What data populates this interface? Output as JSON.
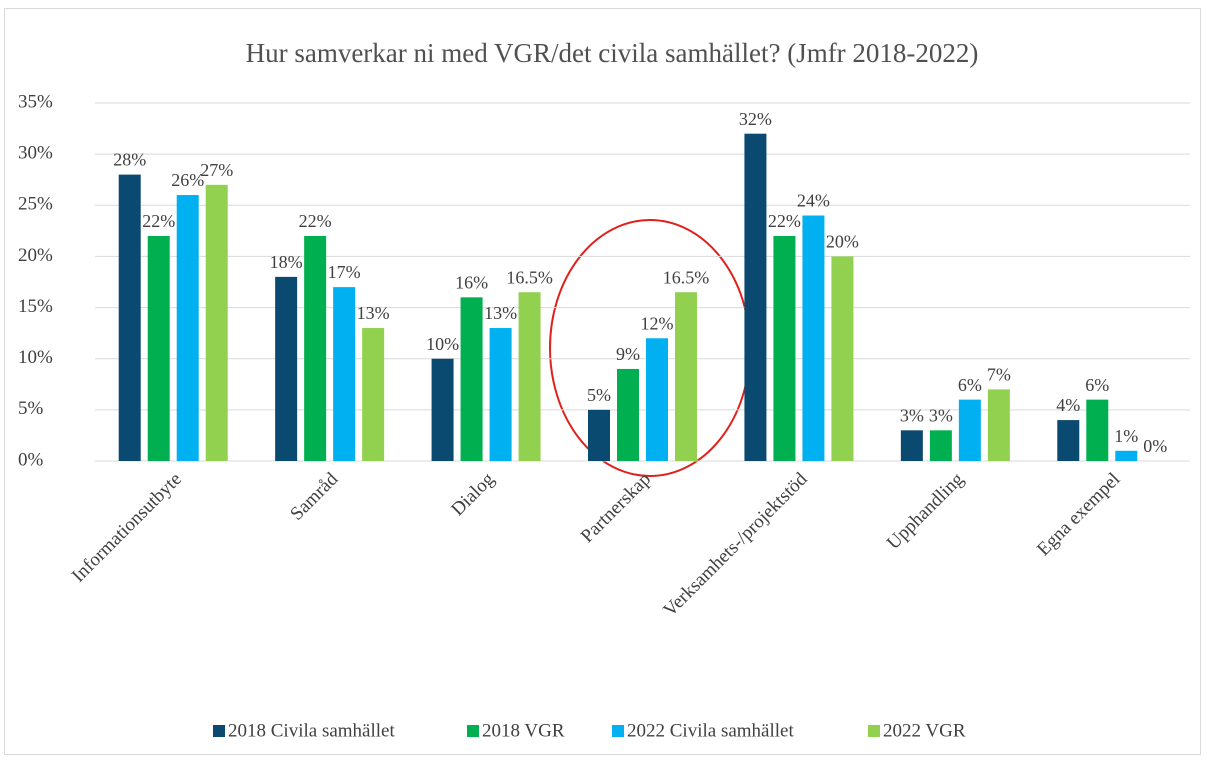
{
  "chart_data": {
    "type": "bar",
    "title": "Hur samverkar ni med VGR/det civila samhället? (Jmfr 2018-2022)",
    "categories": [
      "Informationsutbyte",
      "Samråd",
      "Dialog",
      "Partnerskap",
      "Verksamhets-/projektstöd",
      "Upphandling",
      "Egna exempel"
    ],
    "series": [
      {
        "name": "2018 Civila samhället",
        "color": "#0b4a70",
        "values": [
          28,
          18,
          10,
          5,
          32,
          3,
          4
        ],
        "value_labels": [
          "28%",
          "18%",
          "10%",
          "5%",
          "32%",
          "3%",
          "4%"
        ]
      },
      {
        "name": "2018 VGR",
        "color": "#00b050",
        "values": [
          22,
          22,
          16,
          9,
          22,
          3,
          6
        ],
        "value_labels": [
          "22%",
          "22%",
          "16%",
          "9%",
          "22%",
          "3%",
          "6%"
        ]
      },
      {
        "name": "2022 Civila samhället",
        "color": "#00b0f0",
        "values": [
          26,
          17,
          13,
          12,
          24,
          6,
          1
        ],
        "value_labels": [
          "26%",
          "17%",
          "13%",
          "12%",
          "24%",
          "6%",
          "1%"
        ]
      },
      {
        "name": "2022 VGR",
        "color": "#92d050",
        "values": [
          27,
          13,
          16.5,
          16.5,
          20,
          7,
          0
        ],
        "value_labels": [
          "27%",
          "13%",
          "16.5%",
          "16.5%",
          "20%",
          "7%",
          "0%"
        ]
      }
    ],
    "ylim": [
      0,
      35
    ],
    "yticks": [
      {
        "value": 0,
        "label": "0%"
      },
      {
        "value": 5,
        "label": "5%"
      },
      {
        "value": 10,
        "label": "10%"
      },
      {
        "value": 15,
        "label": "15%"
      },
      {
        "value": 20,
        "label": "20%"
      },
      {
        "value": 25,
        "label": "25%"
      },
      {
        "value": 30,
        "label": "30%"
      },
      {
        "value": 35,
        "label": "35%"
      }
    ],
    "grid": true,
    "legend": "bottom"
  }
}
